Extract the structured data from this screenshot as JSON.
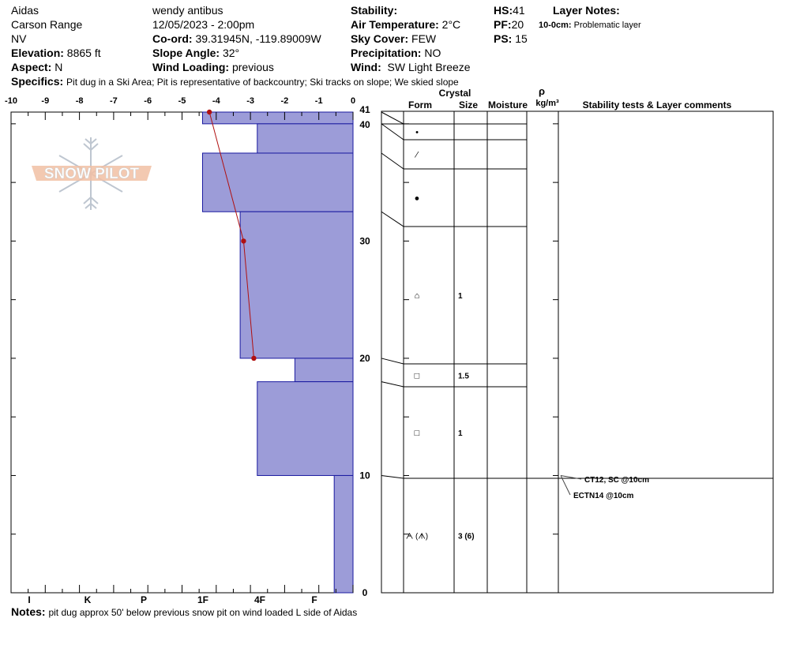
{
  "header": {
    "location": "Aidas",
    "range": "Carson Range",
    "state": "NV",
    "elevation_label": "Elevation:",
    "elevation": "8865 ft",
    "aspect_label": "Aspect:",
    "aspect": "N",
    "observer": "wendy antibus",
    "datetime": "12/05/2023 - 2:00pm",
    "coord_label": "Co-ord:",
    "coord": "39.31945N, -119.89009W",
    "slope_label": "Slope Angle:",
    "slope": "32°",
    "wind_loading_label": "Wind Loading:",
    "wind_loading": "previous",
    "stability_label": "Stability:",
    "air_temp_label": "Air Temperature:",
    "air_temp": "2°C",
    "sky_label": "Sky Cover:",
    "sky": "FEW",
    "precip_label": "Precipitation:",
    "precip": "NO",
    "wind_label": "Wind:",
    "wind": "SW Light Breeze",
    "hs_label": "HS:",
    "hs": "41",
    "pf_label": "PF:",
    "pf": "20",
    "ps_label": "PS:",
    "ps": "15",
    "layer_notes_label": "Layer Notes:",
    "layer_note_depth": "10-0cm:",
    "layer_note_text": "Problematic layer",
    "specifics_label": "Specifics:",
    "specifics": "Pit dug in a Ski Area;  Pit is representative of backcountry;  Ski tracks on slope;  We skied slope",
    "notes_label": "Notes:",
    "notes": "pit dug approx 50' below previous snow pit on wind loaded L side of Aidas"
  },
  "logo_text": "SNOW PILOT",
  "colors": {
    "layer_fill": "#9c9cd8",
    "layer_stroke": "#1a1aa0",
    "temp_line": "#b01010"
  },
  "chart_data": {
    "type": "bar",
    "temp_axis": {
      "ticks": [
        "-10",
        "-9",
        "-8",
        "-7",
        "-6",
        "-5",
        "-4",
        "-3",
        "-2",
        "-1",
        "0"
      ],
      "range": [
        -10,
        0
      ]
    },
    "hardness_axis": {
      "ticks": [
        "I",
        "K",
        "P",
        "1F",
        "4F",
        "F"
      ]
    },
    "depth_axis": {
      "ticks": [
        "41",
        "40",
        "30",
        "20",
        "10",
        "0"
      ],
      "range": [
        0,
        41
      ]
    },
    "layers": [
      {
        "top": 41,
        "bottom": 40,
        "temp_value": -4.4
      },
      {
        "top": 40,
        "bottom": 37.5,
        "temp_value": -2.8
      },
      {
        "top": 37.5,
        "bottom": 32.5,
        "temp_value": -4.4
      },
      {
        "top": 32.5,
        "bottom": 20,
        "temp_value": -3.3
      },
      {
        "top": 20,
        "bottom": 18,
        "temp_value": -1.7
      },
      {
        "top": 18,
        "bottom": 10,
        "temp_value": -2.8
      },
      {
        "top": 10,
        "bottom": 0,
        "temp_value": -0.55
      }
    ],
    "temperature_profile": [
      {
        "depth": 41,
        "temp": -4.2
      },
      {
        "depth": 30,
        "temp": -3.2
      },
      {
        "depth": 20,
        "temp": -2.9
      }
    ]
  },
  "table": {
    "headers": {
      "crystal": "Crystal",
      "form": "Form",
      "size": "Size",
      "moisture": "Moisture",
      "rho": "ρ",
      "density_unit": "kg/m³",
      "stability": "Stability tests & Layer comments"
    },
    "rows": [
      {
        "top": 41,
        "bottom": 40,
        "form": "•",
        "size": ""
      },
      {
        "top": 40,
        "bottom": 37.5,
        "form": "⁄",
        "size": ""
      },
      {
        "top": 37.5,
        "bottom": 32.5,
        "form": "●",
        "size": ""
      },
      {
        "top": 32.5,
        "bottom": 20,
        "form": "⌂",
        "size": "1"
      },
      {
        "top": 20,
        "bottom": 18,
        "form": "□",
        "size": "1.5"
      },
      {
        "top": 18,
        "bottom": 10,
        "form": "□",
        "size": "1"
      },
      {
        "top": 10,
        "bottom": 0,
        "form": "ᗅ (ᗑ)",
        "size": "3 (6)"
      }
    ],
    "stability_tests": [
      {
        "depth": 10,
        "text": "CT12, SC @10cm"
      },
      {
        "depth": 10,
        "text": "ECTN14 @10cm"
      }
    ]
  }
}
